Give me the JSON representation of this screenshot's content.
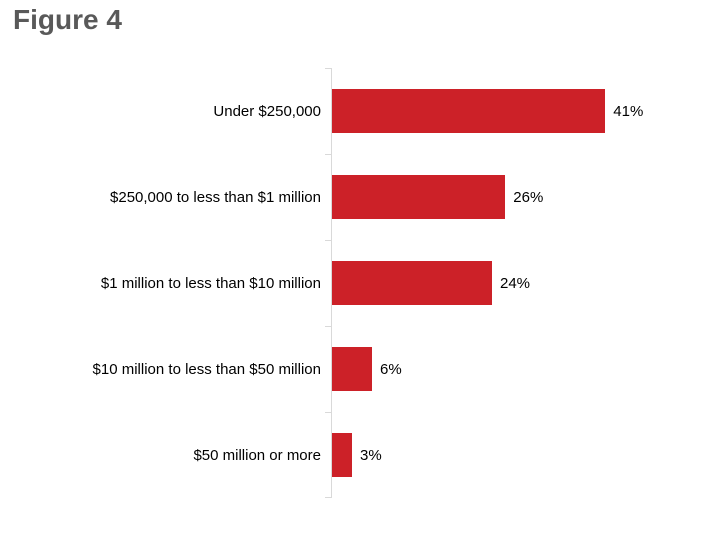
{
  "chart_data": {
    "type": "bar",
    "orientation": "horizontal",
    "title": "Figure 4",
    "categories": [
      "Under $250,000",
      "$250,000 to less than $1 million",
      "$1 million to less than $10 million",
      "$10 million to less than $50 million",
      "$50 million or more"
    ],
    "values": [
      41,
      26,
      24,
      6,
      3
    ],
    "value_labels": [
      "41%",
      "26%",
      "24%",
      "6%",
      "3%"
    ],
    "xlabel": "",
    "ylabel": "",
    "xlim": [
      0,
      45
    ],
    "grid": false,
    "legend": false,
    "data_labels": "outside-end"
  },
  "colors": {
    "bar": "#CC2128",
    "axis": "#D9D9D9",
    "title_text": "#595959",
    "label_text": "#000000",
    "background": "#FFFFFF"
  }
}
